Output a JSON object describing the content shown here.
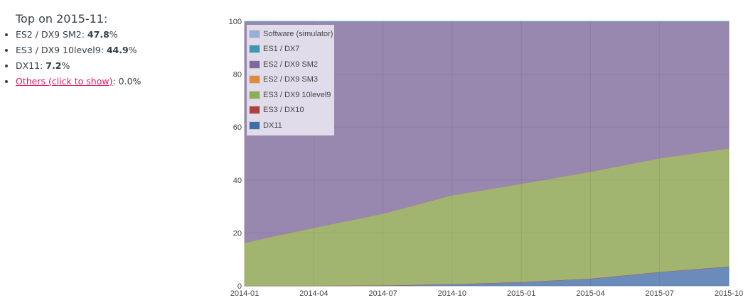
{
  "summary": {
    "title": "Top on 2015-11:",
    "items": [
      {
        "label": "ES2 / DX9 SM2: ",
        "value": "47.8",
        "suffix": "%"
      },
      {
        "label": "ES3 / DX9 10level9: ",
        "value": "44.9",
        "suffix": "%"
      },
      {
        "label": "DX11: ",
        "value": "7.2",
        "suffix": "%"
      }
    ],
    "others_link": "Others (click to show)",
    "others_value": ": 0.0%"
  },
  "legend": [
    {
      "name": "Software (simulator)",
      "color": "#97aed6"
    },
    {
      "name": "ES1 / DX7",
      "color": "#3b97b3"
    },
    {
      "name": "ES2 / DX9 SM2",
      "color": "#7e68a0"
    },
    {
      "name": "ES2 / DX9 SM3",
      "color": "#e28a3c"
    },
    {
      "name": "ES3 / DX9 10level9",
      "color": "#8caf54"
    },
    {
      "name": "ES3 / DX10",
      "color": "#b04141"
    },
    {
      "name": "DX11",
      "color": "#3f6eab"
    }
  ],
  "chart_data": {
    "type": "area",
    "stacked": true,
    "title": "",
    "xlabel": "",
    "ylabel": "",
    "x": [
      "2014-01",
      "2014-04",
      "2014-07",
      "2014-10",
      "2015-01",
      "2015-04",
      "2015-07",
      "2015-10"
    ],
    "x_tick_labels": [
      "2014-01",
      "2014-04",
      "2014-07",
      "2014-10",
      "2015-01",
      "2015-04",
      "2015-07",
      "2015-10"
    ],
    "y_ticks": [
      0,
      20,
      40,
      60,
      80,
      100
    ],
    "ylim": [
      0,
      100
    ],
    "grid": true,
    "legend_position": "top-left inside",
    "series": [
      {
        "name": "DX11",
        "color": "#6b8cba",
        "values": [
          0.0,
          0.0,
          0.1,
          0.6,
          1.4,
          2.7,
          5.2,
          7.3
        ]
      },
      {
        "name": "ES3 / DX10",
        "color": "#b04141",
        "values": [
          0.1,
          0.1,
          0.1,
          0.1,
          0.1,
          0.1,
          0.1,
          0.1
        ]
      },
      {
        "name": "ES3 / DX9 10level9",
        "color": "#a2b570",
        "values": [
          16.3,
          21.9,
          27.1,
          33.6,
          37.1,
          40.4,
          43.0,
          44.6
        ]
      },
      {
        "name": "ES2 / DX9 SM3",
        "color": "#e28a3c",
        "values": [
          0.0,
          0.0,
          0.0,
          0.0,
          0.0,
          0.0,
          0.0,
          0.0
        ]
      },
      {
        "name": "ES2 / DX9 SM2",
        "color": "#9887ae",
        "values": [
          83.4,
          77.8,
          72.5,
          65.5,
          61.2,
          56.6,
          51.5,
          47.8
        ]
      },
      {
        "name": "ES1 / DX7",
        "color": "#3b97b3",
        "values": [
          0.1,
          0.1,
          0.1,
          0.1,
          0.1,
          0.1,
          0.1,
          0.1
        ]
      },
      {
        "name": "Software (simulator)",
        "color": "#97aed6",
        "values": [
          0.1,
          0.1,
          0.1,
          0.1,
          0.1,
          0.1,
          0.1,
          0.1
        ]
      }
    ]
  }
}
